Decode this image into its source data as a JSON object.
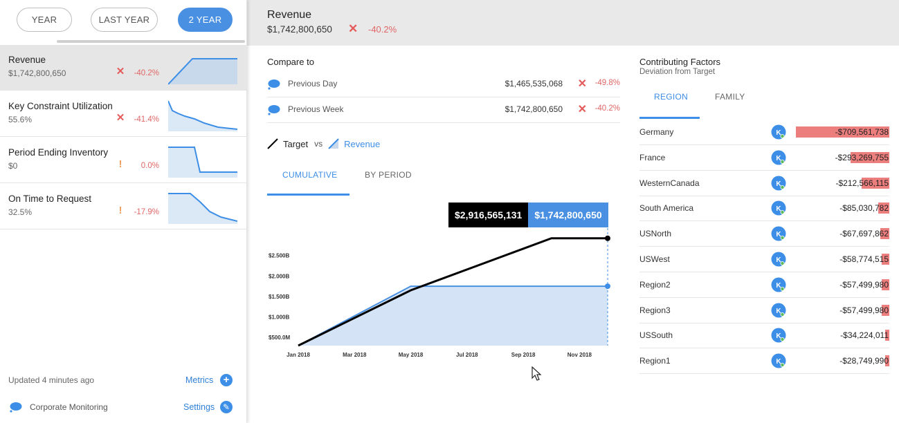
{
  "period_tabs": [
    {
      "label": "YEAR",
      "active": false
    },
    {
      "label": "LAST YEAR",
      "active": false
    },
    {
      "label": "2 YEAR",
      "active": true
    }
  ],
  "metrics": [
    {
      "title": "Revenue",
      "value": "$1,742,800,650",
      "status": "x",
      "change": "-40.2%",
      "selected": true
    },
    {
      "title": "Key Constraint Utilization",
      "value": "55.6%",
      "status": "x",
      "change": "-41.4%",
      "selected": false
    },
    {
      "title": "Period Ending Inventory",
      "value": "$0",
      "status": "!",
      "change": "0.0%",
      "selected": false
    },
    {
      "title": "On Time to Request",
      "value": "32.5%",
      "status": "!",
      "change": "-17.9%",
      "selected": false
    }
  ],
  "footer": {
    "updated": "Updated 4 minutes ago",
    "metrics_link": "Metrics",
    "corporate": "Corporate Monitoring",
    "settings_link": "Settings"
  },
  "header": {
    "title": "Revenue",
    "value": "$1,742,800,650",
    "change": "-40.2%"
  },
  "compare": {
    "title": "Compare to",
    "rows": [
      {
        "label": "Previous Day",
        "value": "$1,465,535,068",
        "change": "-49.8%"
      },
      {
        "label": "Previous Week",
        "value": "$1,742,800,650",
        "change": "-40.2%"
      }
    ]
  },
  "legend": {
    "target": "Target",
    "vs": "vs",
    "revenue": "Revenue"
  },
  "chart_tabs": {
    "cumulative": "CUMULATIVE",
    "by_period": "BY PERIOD"
  },
  "tooltip": {
    "target": "$2,916,565,131",
    "revenue": "$1,742,800,650"
  },
  "chart_data": {
    "type": "area",
    "x": [
      "Jan 2018",
      "Mar 2018",
      "May 2018",
      "Jul 2018",
      "Sep 2018",
      "Nov 2018",
      "Dec 2018"
    ],
    "x_tick_labels": [
      "Jan 2018",
      "Mar 2018",
      "May 2018",
      "Jul 2018",
      "Sep 2018",
      "Nov 2018"
    ],
    "y_tick_labels": [
      "$500.0M",
      "$1.000B",
      "$1.500B",
      "$2.000B",
      "$2.500B"
    ],
    "ylim": [
      0.3,
      3.0
    ],
    "y_unit": "billions USD",
    "series": [
      {
        "name": "Revenue",
        "style": "area",
        "color": "#4a90e2",
        "fill": "#d4e4f6",
        "points": [
          [
            "Jan 2018",
            0.3
          ],
          [
            "May 2018",
            1.75
          ],
          [
            "Dec 2018",
            1.75
          ]
        ]
      },
      {
        "name": "Target",
        "style": "line",
        "color": "#000000",
        "points": [
          [
            "Jan 2018",
            0.3
          ],
          [
            "May 2018",
            1.65
          ],
          [
            "Oct 2018",
            2.92
          ],
          [
            "Dec 2018",
            2.92
          ]
        ]
      }
    ]
  },
  "factors": {
    "title": "Contributing Factors",
    "subtitle": "Deviation from Target",
    "tabs": [
      {
        "label": "REGION",
        "active": true
      },
      {
        "label": "FAMILY",
        "active": false
      }
    ],
    "rows": [
      {
        "name": "Germany",
        "value": "-$709,561,738",
        "deviation": 709561738
      },
      {
        "name": "France",
        "value": "-$293,269,755",
        "deviation": 293269755
      },
      {
        "name": "WesternCanada",
        "value": "-$212,566,115",
        "deviation": 212566115
      },
      {
        "name": "South America",
        "value": "-$85,030,782",
        "deviation": 85030782
      },
      {
        "name": "USNorth",
        "value": "-$67,697,862",
        "deviation": 67697862
      },
      {
        "name": "USWest",
        "value": "-$58,774,515",
        "deviation": 58774515
      },
      {
        "name": "Region2",
        "value": "-$57,499,980",
        "deviation": 57499980
      },
      {
        "name": "Region3",
        "value": "-$57,499,980",
        "deviation": 57499980
      },
      {
        "name": "USSouth",
        "value": "-$34,224,011",
        "deviation": 34224011
      },
      {
        "name": "Region1",
        "value": "-$28,749,990",
        "deviation": 28749990
      }
    ]
  },
  "colors": {
    "accent": "#4a90e2",
    "negative": "#e55b5b",
    "warning": "#f0a060",
    "bar": "#ec7e7e"
  }
}
